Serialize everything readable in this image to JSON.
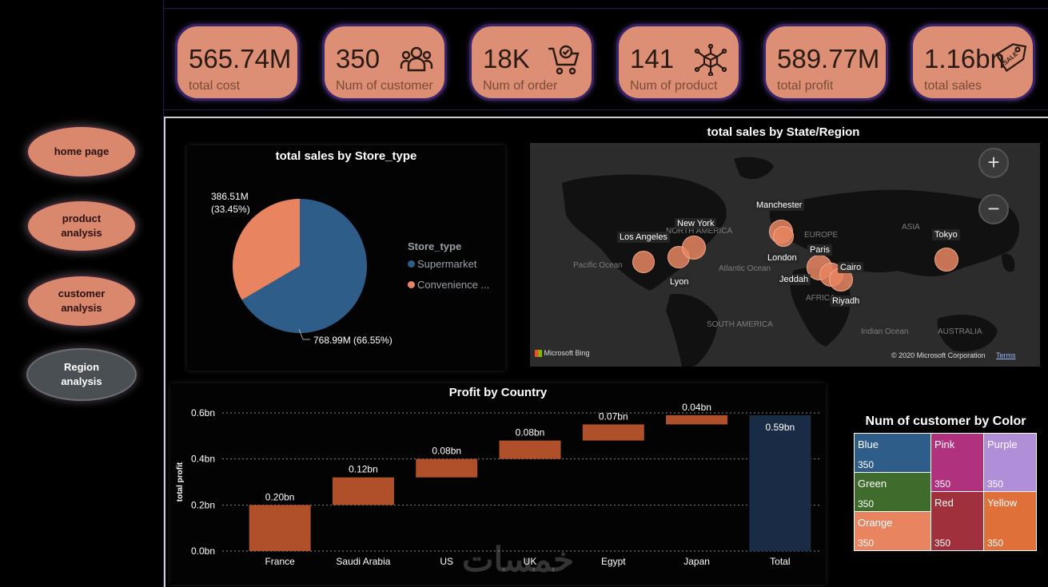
{
  "sidebar": {
    "items": [
      {
        "label": "home page",
        "active": false
      },
      {
        "label": "product analysis",
        "active": false
      },
      {
        "label": "customer analysis",
        "active": false
      },
      {
        "label": "Region analysis",
        "active": true
      }
    ]
  },
  "kpis": [
    {
      "value": "565.74M",
      "label": "total cost",
      "icon": null
    },
    {
      "value": "350",
      "label": "Num of customer",
      "icon": "customers-icon"
    },
    {
      "value": "18K",
      "label": "Num of order",
      "icon": "cart-check-icon"
    },
    {
      "value": "141",
      "label": "Num of product",
      "icon": "product-network-icon"
    },
    {
      "value": "589.77M",
      "label": "total profit",
      "icon": null
    },
    {
      "value": "1.16bn",
      "label": "total sales",
      "icon": "sale-tag-icon"
    }
  ],
  "pie": {
    "title": "total sales by Store_type",
    "legend_title": "Store_type",
    "label_supermarket": "768.99M (66.55%)",
    "label_convenience_1": "386.51M",
    "label_convenience_2": "(33.45%)",
    "legend": [
      "Supermarket",
      "Convenience ..."
    ]
  },
  "map": {
    "title": "total sales by State/Region",
    "cities": [
      "Manchester",
      "New York",
      "Los Angeles",
      "London",
      "Paris",
      "Cairo",
      "Jeddah",
      "Riyadh",
      "Lyon",
      "Tokyo"
    ],
    "regions": [
      "EUROPE",
      "ASIA",
      "NORTH AMERICA",
      "Pacific Ocean",
      "Atlantic Ocean",
      "AFRICA",
      "SOUTH AMERICA",
      "Indian Ocean",
      "AUSTRALIA"
    ],
    "zoom_in": "+",
    "zoom_out": "−",
    "bing": "Microsoft Bing",
    "copyright": "© 2020 Microsoft Corporation",
    "terms": "Terms"
  },
  "treemap": {
    "title": "Num of customer by Color",
    "cells": [
      {
        "name": "Blue",
        "value": "350",
        "color": "#2f5d8a"
      },
      {
        "name": "Green",
        "value": "350",
        "color": "#3f6b2c"
      },
      {
        "name": "Orange",
        "value": "350",
        "color": "#e8845f"
      },
      {
        "name": "Pink",
        "value": "350",
        "color": "#b0327e"
      },
      {
        "name": "Purple",
        "value": "350",
        "color": "#b08fd8"
      },
      {
        "name": "Red",
        "value": "350",
        "color": "#a0303c"
      },
      {
        "name": "Yellow",
        "value": "350",
        "color": "#e0703a"
      }
    ]
  },
  "watermark": "خمسات",
  "chart_data": [
    {
      "type": "pie",
      "title": "total sales by Store_type",
      "legend_title": "Store_type",
      "categories": [
        "Supermarket",
        "Convenience ..."
      ],
      "values": [
        768.99,
        386.51
      ],
      "labels": [
        "768.99M (66.55%)",
        "386.51M (33.45%)"
      ],
      "colors": [
        "#2f5d8a",
        "#e8845f"
      ],
      "legend": "right"
    },
    {
      "type": "bar",
      "subtype": "waterfall",
      "title": "Profit by Country",
      "ylabel": "total profit",
      "xlabel": "",
      "categories": [
        "France",
        "Saudi Arabia",
        "US",
        "UK",
        "Egypt",
        "Japan",
        "Total"
      ],
      "values": [
        0.2,
        0.12,
        0.08,
        0.08,
        0.07,
        0.04,
        0.59
      ],
      "labels": [
        "0.20bn",
        "0.12bn",
        "0.08bn",
        "0.08bn",
        "0.07bn",
        "0.04bn",
        "0.59bn"
      ],
      "yticks": [
        "0.0bn",
        "0.2bn",
        "0.4bn",
        "0.6bn"
      ],
      "ytick_values": [
        0,
        0.2,
        0.4,
        0.6
      ],
      "ylim": [
        0,
        0.6
      ],
      "colors": {
        "increase": "#b0502a",
        "total": "#1a2c45"
      },
      "grid": true
    }
  ]
}
